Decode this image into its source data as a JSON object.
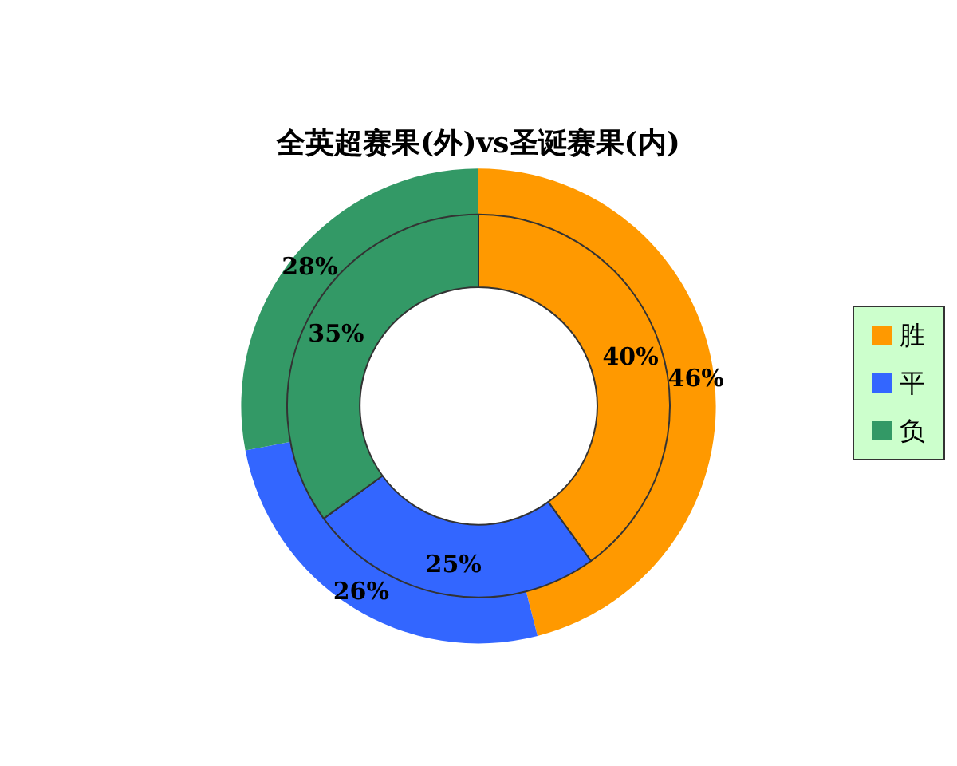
{
  "chart_data": {
    "type": "donut",
    "title": "全英超赛果(外)vs圣诞赛果(内)",
    "categories": [
      "胜",
      "平",
      "负"
    ],
    "colors": [
      "#ff9900",
      "#3366ff",
      "#339966"
    ],
    "series": [
      {
        "values": [
          46,
          26,
          28
        ],
        "value_labels": [
          "46%",
          "26%",
          "28%"
        ]
      },
      {
        "values": [
          40,
          25,
          35
        ],
        "value_labels": [
          "40%",
          "25%",
          "35%"
        ]
      }
    ],
    "legend": "right"
  }
}
